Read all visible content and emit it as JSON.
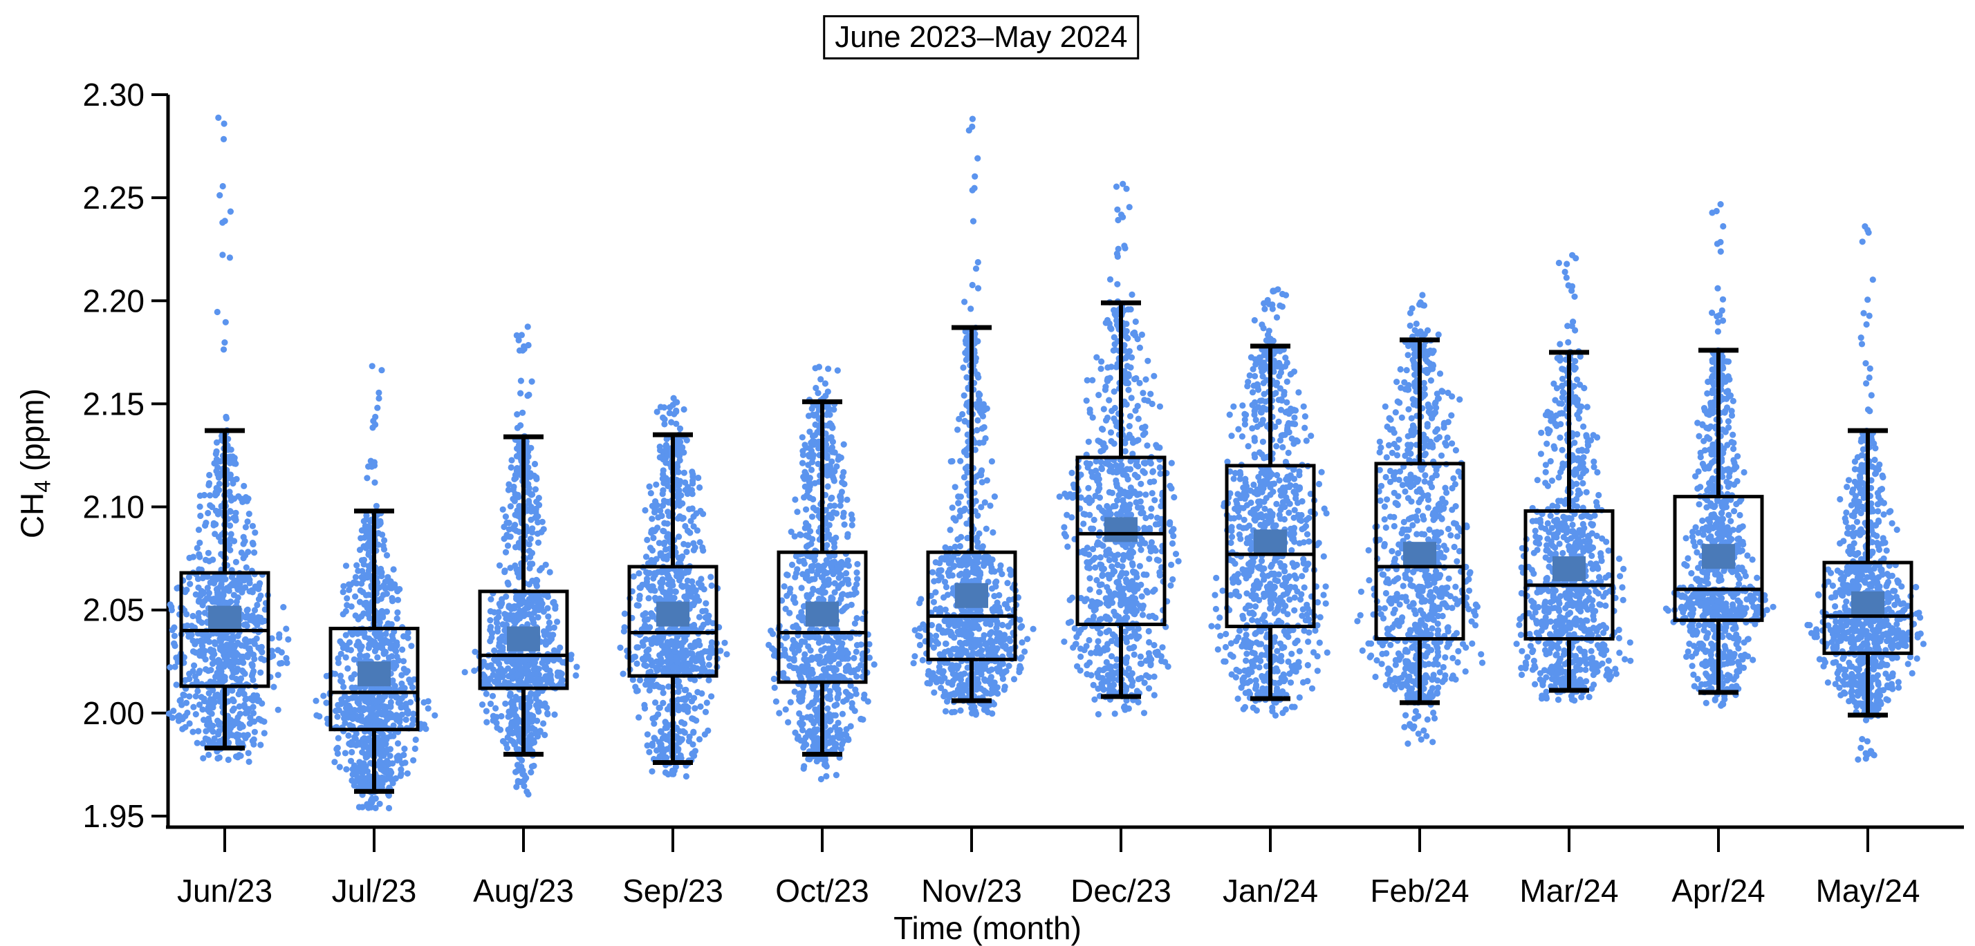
{
  "chart_data": {
    "type": "box",
    "variant": "boxplot-with-jittered-points",
    "title": "June 2023–May 2024",
    "xlabel": "Time (month)",
    "ylabel": "CH4 (ppm)",
    "ylabel_parts": {
      "prefix": "CH",
      "sub": "4",
      "suffix": " (ppm)"
    },
    "ylim": [
      1.944,
      2.305
    ],
    "yticks": [
      1.95,
      2.0,
      2.05,
      2.1,
      2.15,
      2.2,
      2.25,
      2.3
    ],
    "ytick_labels": [
      "1.95",
      "2.00",
      "2.05",
      "2.10",
      "2.15",
      "2.20",
      "2.25",
      "2.30"
    ],
    "grid": "off",
    "legend": "none",
    "point_color": "#5b94ee",
    "mean_marker_color": "#4a7ab8",
    "line_color": "#000000",
    "categories": [
      "Jun/23",
      "Jul/23",
      "Aug/23",
      "Sep/23",
      "Oct/23",
      "Nov/23",
      "Dec/23",
      "Jan/24",
      "Feb/24",
      "Mar/24",
      "Apr/24",
      "May/24"
    ],
    "months": [
      {
        "label": "Jun/23",
        "min": 1.977,
        "whisker_low": 1.983,
        "q1": 2.013,
        "median": 2.04,
        "mean": 2.046,
        "q3": 2.068,
        "whisker_high": 2.137,
        "max": 2.292
      },
      {
        "label": "Jul/23",
        "min": 1.953,
        "whisker_low": 1.962,
        "q1": 1.992,
        "median": 2.01,
        "mean": 2.019,
        "q3": 2.041,
        "whisker_high": 2.098,
        "max": 2.168
      },
      {
        "label": "Aug/23",
        "min": 1.96,
        "whisker_low": 1.98,
        "q1": 2.012,
        "median": 2.028,
        "mean": 2.036,
        "q3": 2.059,
        "whisker_high": 2.134,
        "max": 2.189
      },
      {
        "label": "Sep/23",
        "min": 1.968,
        "whisker_low": 1.976,
        "q1": 2.018,
        "median": 2.039,
        "mean": 2.048,
        "q3": 2.071,
        "whisker_high": 2.135,
        "max": 2.153
      },
      {
        "label": "Oct/23",
        "min": 1.967,
        "whisker_low": 1.98,
        "q1": 2.015,
        "median": 2.039,
        "mean": 2.048,
        "q3": 2.078,
        "whisker_high": 2.151,
        "max": 2.169
      },
      {
        "label": "Nov/23",
        "min": 1.999,
        "whisker_low": 2.006,
        "q1": 2.026,
        "median": 2.047,
        "mean": 2.057,
        "q3": 2.078,
        "whisker_high": 2.187,
        "max": 2.292
      },
      {
        "label": "Dec/23",
        "min": 1.999,
        "whisker_low": 2.008,
        "q1": 2.043,
        "median": 2.087,
        "mean": 2.089,
        "q3": 2.124,
        "whisker_high": 2.199,
        "max": 2.257
      },
      {
        "label": "Jan/24",
        "min": 1.999,
        "whisker_low": 2.007,
        "q1": 2.042,
        "median": 2.077,
        "mean": 2.083,
        "q3": 2.12,
        "whisker_high": 2.178,
        "max": 2.206
      },
      {
        "label": "Feb/24",
        "min": 1.983,
        "whisker_low": 2.005,
        "q1": 2.036,
        "median": 2.071,
        "mean": 2.077,
        "q3": 2.121,
        "whisker_high": 2.181,
        "max": 2.204
      },
      {
        "label": "Mar/24",
        "min": 2.006,
        "whisker_low": 2.011,
        "q1": 2.036,
        "median": 2.062,
        "mean": 2.07,
        "q3": 2.098,
        "whisker_high": 2.175,
        "max": 2.222
      },
      {
        "label": "Apr/24",
        "min": 2.003,
        "whisker_low": 2.01,
        "q1": 2.045,
        "median": 2.06,
        "mean": 2.076,
        "q3": 2.105,
        "whisker_high": 2.176,
        "max": 2.247
      },
      {
        "label": "May/24",
        "min": 1.97,
        "whisker_low": 1.999,
        "q1": 2.029,
        "median": 2.047,
        "mean": 2.053,
        "q3": 2.073,
        "whisker_high": 2.137,
        "max": 2.237
      }
    ]
  }
}
